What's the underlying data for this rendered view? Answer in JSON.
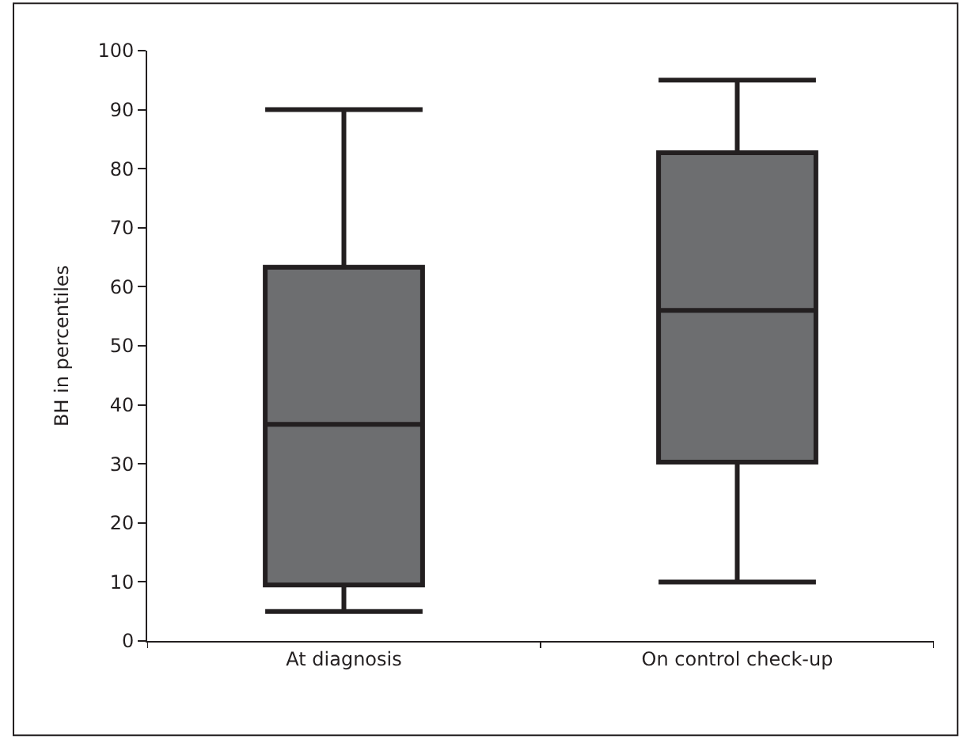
{
  "chart_data": {
    "type": "box",
    "ylabel": "BH in percentiles",
    "categories": [
      "At diagnosis",
      "On control check-up"
    ],
    "series": [
      {
        "color": "#6d6e70",
        "boxes": [
          {
            "low": 5,
            "q1": 9.5,
            "median": 36.7,
            "q3": 63.3,
            "high": 90
          },
          {
            "low": 10,
            "q1": 30.3,
            "median": 56,
            "q3": 82.7,
            "high": 95
          }
        ]
      }
    ],
    "ylim": [
      0,
      100
    ],
    "yticks": [
      0,
      10,
      20,
      30,
      40,
      50,
      60,
      70,
      80,
      90,
      100
    ]
  }
}
